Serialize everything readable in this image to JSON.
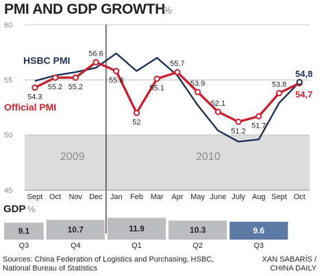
{
  "title": "PMI AND GDP GROWTH",
  "title_unit": "%",
  "colors": {
    "official": "#c8202f",
    "hsbc": "#1e2f55",
    "shade": "#dcdcdc",
    "gdp_bar": "#bcbdc0",
    "gdp_highlight": "#5b7ba6"
  },
  "chart_data": [
    {
      "type": "line",
      "title": "PMI AND GDP GROWTH %",
      "categories": [
        "Sept",
        "Oct",
        "Nov",
        "Dec",
        "Jan",
        "Feb",
        "Mar",
        "Apr",
        "May",
        "June",
        "July",
        "Aug",
        "Sept",
        "Oct"
      ],
      "ylim": [
        45,
        60
      ],
      "yticks": [
        45,
        50,
        55,
        60
      ],
      "years": [
        "2009",
        "2010"
      ],
      "series": [
        {
          "name": "HSBC PMI",
          "values": [
            54.9,
            55.4,
            55.7,
            56.1,
            57.4,
            55.8,
            57.0,
            55.4,
            52.7,
            50.4,
            49.4,
            49.6,
            52.9,
            54.8
          ],
          "end_label": "54,8"
        },
        {
          "name": "Official PMI",
          "values": [
            54.3,
            55.2,
            55.2,
            56.6,
            55.8,
            52,
            55.1,
            55.7,
            53.9,
            52.1,
            51.2,
            51.7,
            53.8,
            54.7
          ],
          "end_label": "54,7",
          "labels": [
            "54.3",
            "55.2",
            "55.2",
            "56.6",
            "55.8",
            "52",
            "55.1",
            "55.7",
            "53.9",
            "52.1",
            "51.2",
            "51.7",
            "53.8",
            ""
          ]
        }
      ]
    },
    {
      "type": "bar",
      "title": "GDP",
      "unit": "%",
      "categories": [
        "Q3",
        "Q4",
        "Q1",
        "Q2",
        "Q3"
      ],
      "values": [
        9.1,
        10.7,
        11.9,
        10.3,
        9.6
      ],
      "labels": [
        "9.1",
        "10.7",
        "11.9",
        "10.3",
        "9.6"
      ]
    }
  ],
  "source": "Sources: China Federation of Logistics and Purchasing, HSBC, National Bureau of Statistics",
  "credit_line1": "XAN SABARÍS /",
  "credit_line2": "CHINA DAILY"
}
